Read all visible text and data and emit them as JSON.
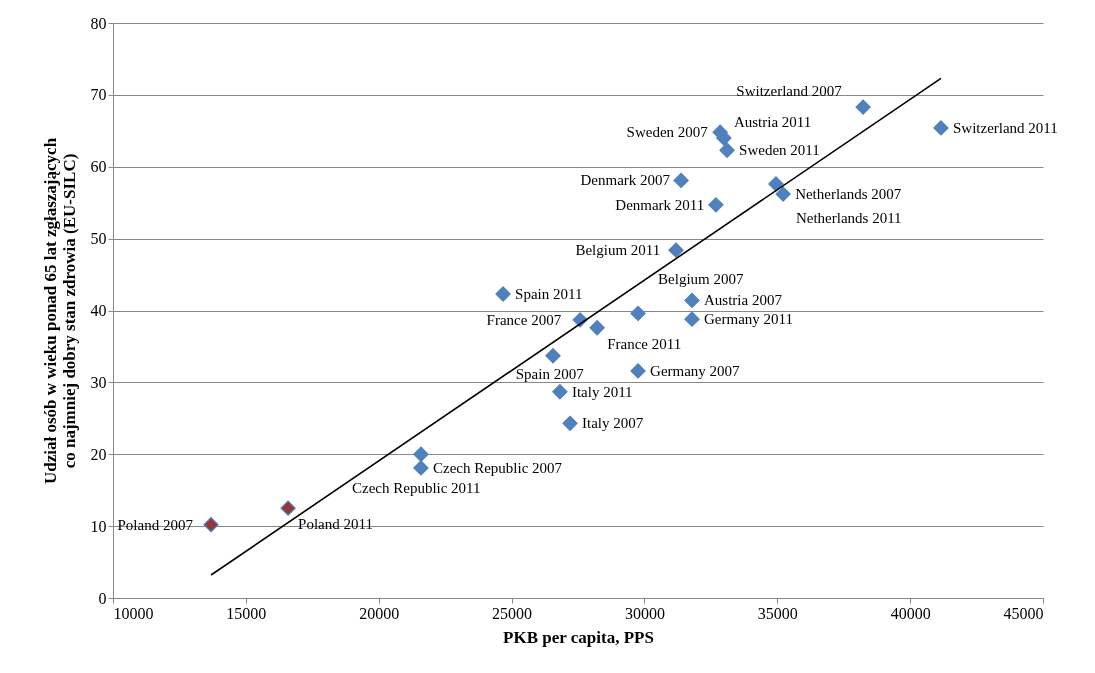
{
  "chart_data": {
    "type": "scatter",
    "xlabel": "PKB per capita, PPS",
    "ylabel": "Udział osób w wieku ponad 65 lat zgłaszających\nco najmniej dobry stan zdrowia (EU-SILC)",
    "xlim": [
      10000,
      45000
    ],
    "xticks": [
      10000,
      15000,
      20000,
      25000,
      30000,
      35000,
      40000,
      45000
    ],
    "ylim": [
      0,
      80
    ],
    "yticks": [
      0,
      10,
      20,
      30,
      40,
      50,
      60,
      70,
      80
    ],
    "grid": "y",
    "marker": "diamond",
    "series": [
      {
        "x": [
          13690,
          16590,
          21590,
          21590,
          24680,
          26560,
          26820,
          27200,
          27580,
          28220,
          29760,
          29760,
          31190,
          31790,
          31790,
          31380,
          32690,
          32850,
          32990,
          33110,
          34950,
          35220,
          38230,
          41160
        ],
        "values": [
          10.2,
          12.5,
          18.1,
          20.0,
          42.3,
          33.7,
          28.7,
          24.3,
          38.7,
          37.6,
          31.6,
          39.6,
          48.4,
          41.4,
          38.8,
          58.1,
          54.7,
          64.8,
          64.0,
          62.3,
          57.6,
          56.2,
          68.3,
          65.4
        ],
        "colors": [
          "#953735",
          "#953735",
          "#4f81bd",
          "#4f81bd",
          "#4f81bd",
          "#4f81bd",
          "#4f81bd",
          "#4f81bd",
          "#4f81bd",
          "#4f81bd",
          "#4f81bd",
          "#4f81bd",
          "#4f81bd",
          "#4f81bd",
          "#4f81bd",
          "#4f81bd",
          "#4f81bd",
          "#4f81bd",
          "#4f81bd",
          "#4f81bd",
          "#4f81bd",
          "#4f81bd",
          "#4f81bd",
          "#4f81bd"
        ]
      },
      {
        "type": "line",
        "x": [
          13690,
          41160
        ],
        "values": [
          3.2,
          72.3
        ],
        "color": "#000000",
        "marker": "none"
      }
    ],
    "annotations": [
      {
        "text": "Poland 2007",
        "x": 13690,
        "y": 10.2
      },
      {
        "text": "Poland 2011",
        "x": 16590,
        "y": 12.5
      },
      {
        "text": "Czech Republic 2007",
        "x": 21590,
        "y": 18.1
      },
      {
        "text": "Czech Republic 2011",
        "x": 21590,
        "y": 20.0
      },
      {
        "text": "Spain 2011",
        "x": 24680,
        "y": 42.3
      },
      {
        "text": "Spain 2007",
        "x": 26560,
        "y": 33.7
      },
      {
        "text": "Italy 2011",
        "x": 26820,
        "y": 28.7
      },
      {
        "text": "Italy 2007",
        "x": 27200,
        "y": 24.3
      },
      {
        "text": "France 2007",
        "x": 27580,
        "y": 38.7
      },
      {
        "text": "France 2011",
        "x": 28220,
        "y": 37.6
      },
      {
        "text": "Germany 2007",
        "x": 29760,
        "y": 31.6
      },
      {
        "text": "Belgium 2007",
        "x": 29760,
        "y": 39.6
      },
      {
        "text": "Belgium 2011",
        "x": 31190,
        "y": 48.4
      },
      {
        "text": "Austria 2007",
        "x": 31790,
        "y": 41.4
      },
      {
        "text": "Germany 2011",
        "x": 31790,
        "y": 38.8
      },
      {
        "text": "Denmark 2007",
        "x": 31380,
        "y": 58.1
      },
      {
        "text": "Denmark 2011",
        "x": 32690,
        "y": 54.7
      },
      {
        "text": "Sweden 2007",
        "x": 32850,
        "y": 64.8
      },
      {
        "text": "Austria 2011",
        "x": 32990,
        "y": 64.0
      },
      {
        "text": "Sweden 2011",
        "x": 33110,
        "y": 62.3
      },
      {
        "text": "Netherlands 2011",
        "x": 34950,
        "y": 57.6
      },
      {
        "text": "Netherlands 2007",
        "x": 35220,
        "y": 56.2
      },
      {
        "text": "Switzerland 2007",
        "x": 38230,
        "y": 68.3
      },
      {
        "text": "Switzerland 2011",
        "x": 41160,
        "y": 65.4
      }
    ]
  }
}
